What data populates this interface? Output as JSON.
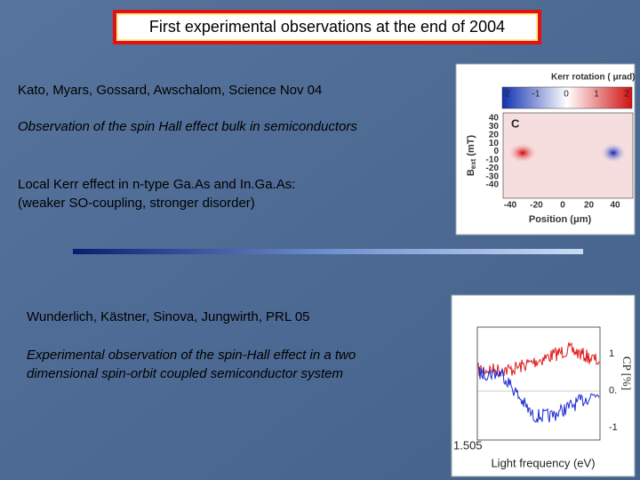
{
  "header": {
    "title": "First experimental observations at the end of 2004"
  },
  "section1": {
    "reference": "Kato, Myars, Gossard, Awschalom, Science Nov 04",
    "subtitle": "Observation of the spin Hall effect bulk in semiconductors",
    "lines": [
      "Local Kerr effect in n-type Ga.As and In.Ga.As:",
      "(weaker SO-coupling, stronger disorder)"
    ]
  },
  "figure1": {
    "colorbar_title": "Kerr rotation ( μrad)",
    "colorbar_ticks": [
      "-2",
      "-1",
      "0",
      "1",
      "2"
    ],
    "panel": "C",
    "y_label": {
      "main": "B",
      "sub": "ext",
      "unit": "(mT)"
    },
    "y_ticks": [
      "40",
      "30",
      "20",
      "10",
      "0",
      "-10",
      "-20",
      "-30",
      "-40"
    ],
    "x_ticks": [
      "-40",
      "-20",
      "0",
      "20",
      "40"
    ],
    "x_label": "Position (μm)"
  },
  "section2": {
    "reference": "Wunderlich, Kästner, Sinova, Jungwirth, PRL 05",
    "lines": [
      "Experimental observation of the spin-Hall effect in a two",
      "dimensional spin-orbit coupled semiconductor system"
    ]
  },
  "figure2": {
    "y_ticks": [
      "1",
      "0.",
      "-1"
    ],
    "y_label": "CP [%]",
    "x_tick": "1.505",
    "x_label": "Light frequency (eV)"
  }
}
